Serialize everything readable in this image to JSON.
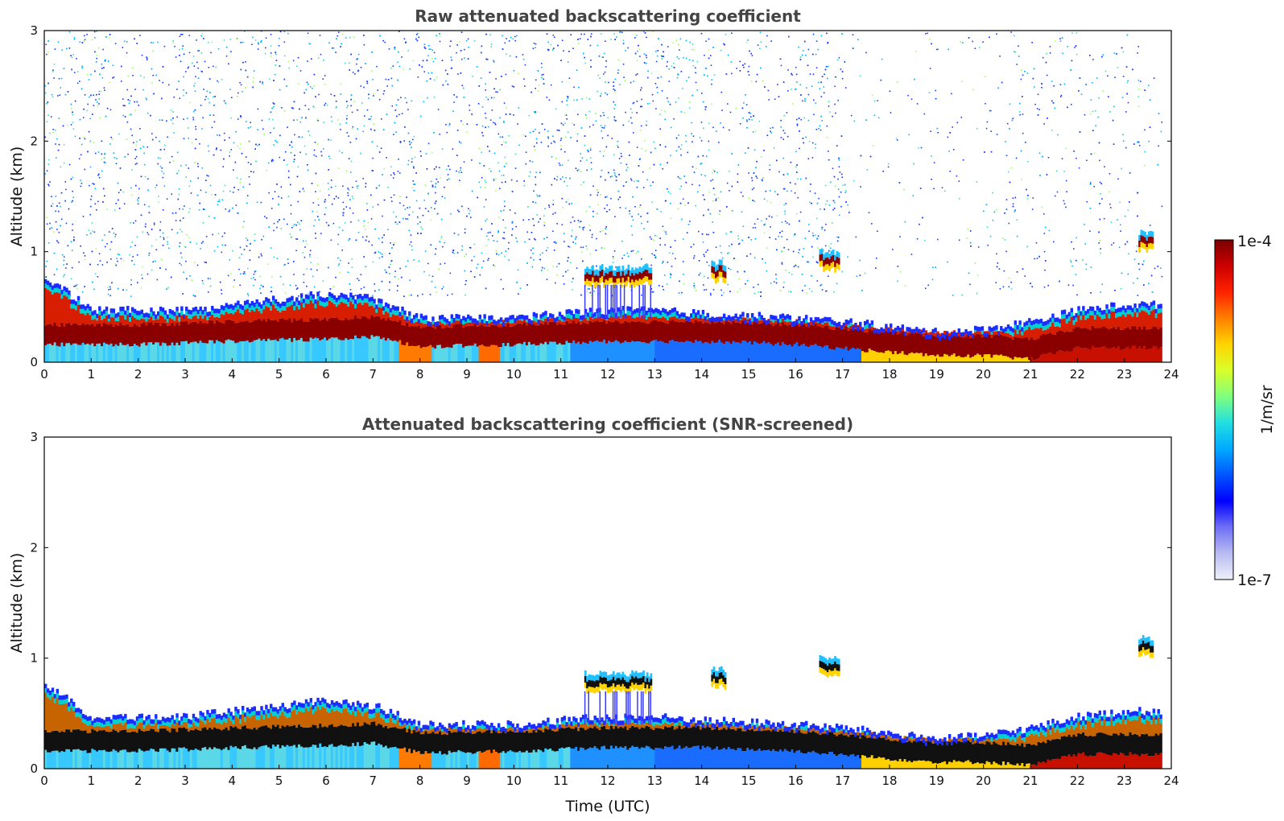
{
  "chart_data": [
    {
      "type": "heatmap",
      "title": "Raw attenuated backscattering coefficient",
      "xlabel": "",
      "ylabel": "Altitude (km)",
      "xlim": [
        0,
        24
      ],
      "ylim": [
        0,
        3
      ],
      "xticks": [
        "0",
        "1",
        "2",
        "3",
        "4",
        "5",
        "6",
        "7",
        "8",
        "9",
        "10",
        "11",
        "12",
        "13",
        "14",
        "15",
        "16",
        "17",
        "18",
        "19",
        "20",
        "21",
        "22",
        "23",
        "24"
      ],
      "yticks": [
        "0",
        "1",
        "2",
        "3"
      ],
      "screened": false,
      "layer_top_km": [
        {
          "t": 0,
          "z": 0.75
        },
        {
          "t": 1,
          "z": 0.45
        },
        {
          "t": 2,
          "z": 0.45
        },
        {
          "t": 3,
          "z": 0.45
        },
        {
          "t": 4,
          "z": 0.5
        },
        {
          "t": 5,
          "z": 0.55
        },
        {
          "t": 6,
          "z": 0.6
        },
        {
          "t": 7,
          "z": 0.55
        },
        {
          "t": 8,
          "z": 0.38
        },
        {
          "t": 9,
          "z": 0.38
        },
        {
          "t": 10,
          "z": 0.38
        },
        {
          "t": 11,
          "z": 0.42
        },
        {
          "t": 12,
          "z": 0.45
        },
        {
          "t": 13,
          "z": 0.45
        },
        {
          "t": 14,
          "z": 0.42
        },
        {
          "t": 15,
          "z": 0.4
        },
        {
          "t": 16,
          "z": 0.38
        },
        {
          "t": 17,
          "z": 0.35
        },
        {
          "t": 18,
          "z": 0.3
        },
        {
          "t": 19,
          "z": 0.25
        },
        {
          "t": 20,
          "z": 0.28
        },
        {
          "t": 21,
          "z": 0.35
        },
        {
          "t": 22,
          "z": 0.45
        },
        {
          "t": 23,
          "z": 0.5
        },
        {
          "t": 23.8,
          "z": 0.5
        }
      ],
      "strong_layer_km": [
        {
          "t": 0,
          "z": 0.25
        },
        {
          "t": 2,
          "z": 0.25
        },
        {
          "t": 4,
          "z": 0.28
        },
        {
          "t": 6,
          "z": 0.3
        },
        {
          "t": 7,
          "z": 0.32
        },
        {
          "t": 8,
          "z": 0.23
        },
        {
          "t": 10,
          "z": 0.25
        },
        {
          "t": 12,
          "z": 0.28
        },
        {
          "t": 14,
          "z": 0.28
        },
        {
          "t": 16,
          "z": 0.25
        },
        {
          "t": 18,
          "z": 0.18
        },
        {
          "t": 19,
          "z": 0.15
        },
        {
          "t": 20,
          "z": 0.15
        },
        {
          "t": 21,
          "z": 0.12
        },
        {
          "t": 22,
          "z": 0.22
        },
        {
          "t": 23.8,
          "z": 0.22
        }
      ],
      "cloud_features": [
        {
          "t_start": 11.5,
          "t_end": 12.9,
          "z": 0.78
        },
        {
          "t_start": 14.2,
          "t_end": 14.5,
          "z": 0.82
        },
        {
          "t_start": 16.5,
          "t_end": 16.9,
          "z": 0.92
        },
        {
          "t_start": 23.3,
          "t_end": 23.6,
          "z": 1.1
        }
      ]
    },
    {
      "type": "heatmap",
      "title": "Attenuated backscattering coefficient (SNR-screened)",
      "xlabel": "Time (UTC)",
      "ylabel": "Altitude (km)",
      "xlim": [
        0,
        24
      ],
      "ylim": [
        0,
        3
      ],
      "xticks": [
        "0",
        "1",
        "2",
        "3",
        "4",
        "5",
        "6",
        "7",
        "8",
        "9",
        "10",
        "11",
        "12",
        "13",
        "14",
        "15",
        "16",
        "17",
        "18",
        "19",
        "20",
        "21",
        "22",
        "23",
        "24"
      ],
      "yticks": [
        "0",
        "1",
        "2",
        "3"
      ],
      "screened": true,
      "layer_top_km": [
        {
          "t": 0,
          "z": 0.75
        },
        {
          "t": 1,
          "z": 0.45
        },
        {
          "t": 2,
          "z": 0.45
        },
        {
          "t": 3,
          "z": 0.45
        },
        {
          "t": 4,
          "z": 0.5
        },
        {
          "t": 5,
          "z": 0.55
        },
        {
          "t": 6,
          "z": 0.6
        },
        {
          "t": 7,
          "z": 0.55
        },
        {
          "t": 8,
          "z": 0.38
        },
        {
          "t": 9,
          "z": 0.38
        },
        {
          "t": 10,
          "z": 0.38
        },
        {
          "t": 11,
          "z": 0.42
        },
        {
          "t": 12,
          "z": 0.45
        },
        {
          "t": 13,
          "z": 0.45
        },
        {
          "t": 14,
          "z": 0.42
        },
        {
          "t": 15,
          "z": 0.4
        },
        {
          "t": 16,
          "z": 0.38
        },
        {
          "t": 17,
          "z": 0.35
        },
        {
          "t": 18,
          "z": 0.3
        },
        {
          "t": 19,
          "z": 0.25
        },
        {
          "t": 20,
          "z": 0.28
        },
        {
          "t": 21,
          "z": 0.35
        },
        {
          "t": 22,
          "z": 0.45
        },
        {
          "t": 23,
          "z": 0.5
        },
        {
          "t": 23.8,
          "z": 0.5
        }
      ],
      "strong_layer_km": [
        {
          "t": 0,
          "z": 0.25
        },
        {
          "t": 2,
          "z": 0.25
        },
        {
          "t": 4,
          "z": 0.28
        },
        {
          "t": 6,
          "z": 0.3
        },
        {
          "t": 7,
          "z": 0.32
        },
        {
          "t": 8,
          "z": 0.23
        },
        {
          "t": 10,
          "z": 0.25
        },
        {
          "t": 12,
          "z": 0.28
        },
        {
          "t": 14,
          "z": 0.28
        },
        {
          "t": 16,
          "z": 0.25
        },
        {
          "t": 18,
          "z": 0.18
        },
        {
          "t": 19,
          "z": 0.15
        },
        {
          "t": 20,
          "z": 0.15
        },
        {
          "t": 21,
          "z": 0.12
        },
        {
          "t": 22,
          "z": 0.22
        },
        {
          "t": 23.8,
          "z": 0.22
        }
      ],
      "cloud_features": [
        {
          "t_start": 11.5,
          "t_end": 12.9,
          "z": 0.78
        },
        {
          "t_start": 14.2,
          "t_end": 14.5,
          "z": 0.82
        },
        {
          "t_start": 16.5,
          "t_end": 16.9,
          "z": 0.92
        },
        {
          "t_start": 23.3,
          "t_end": 23.6,
          "z": 1.1
        }
      ]
    }
  ],
  "colorbar": {
    "label": "1/m/sr",
    "max_label": "1e-4",
    "min_label": "1e-7",
    "colors": [
      "#eef0fa",
      "#b8bcf0",
      "#6f6ff5",
      "#0000ff",
      "#0055ff",
      "#00aaff",
      "#22e0e0",
      "#7fff7f",
      "#d8ff2a",
      "#ffd400",
      "#ff8000",
      "#ff2200",
      "#cc0000",
      "#7a0000"
    ]
  }
}
